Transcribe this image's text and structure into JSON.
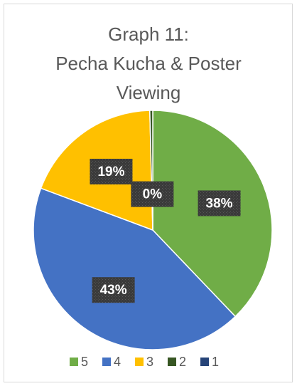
{
  "chart_data": {
    "type": "pie",
    "title": [
      "Graph 11:",
      "Pecha Kucha & Poster",
      "Viewing"
    ],
    "categories": [
      "5",
      "4",
      "3",
      "2",
      "1"
    ],
    "values": [
      38,
      43,
      19,
      0.4,
      0
    ],
    "value_labels": [
      "38%",
      "43%",
      "19%",
      "0%",
      null
    ],
    "colors": [
      "#70ad47",
      "#4472c4",
      "#ffc000",
      "#375623",
      "#264478"
    ],
    "legend": "bottom"
  }
}
